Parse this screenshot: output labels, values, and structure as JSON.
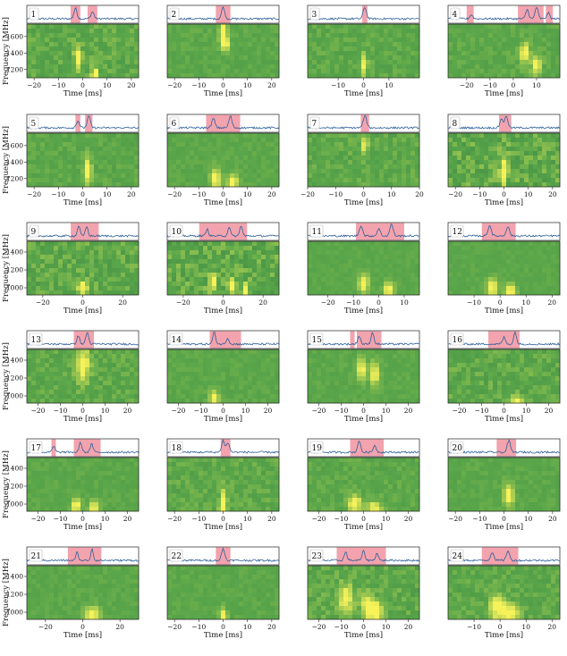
{
  "figure": {
    "ylabel": "Frequency [MHz]",
    "xlabel": "Time [ms]",
    "colors": {
      "profile_line": "#2e5f98",
      "burst_shade": "#f2a3ae",
      "spectrogram_base": "#5aa64a",
      "spectrogram_bright": "#f6f25a",
      "spectrogram_dark": "#2f7a42"
    }
  },
  "chart_data": [
    {
      "type": "heatmap",
      "panel_label": "1",
      "xticks": [
        -20,
        -10,
        0,
        10,
        20
      ],
      "xlim": [
        -23,
        23
      ],
      "yticks": [
        1200,
        1400,
        1600
      ],
      "ylim": [
        1100,
        1750
      ],
      "shaded_windows": [
        [
          -5,
          -1
        ],
        [
          2,
          6
        ]
      ],
      "profile_peaks": [
        {
          "t": -3,
          "amp": 0.9
        },
        {
          "t": 4,
          "amp": 0.6
        }
      ],
      "emission": [
        {
          "t": -2,
          "f": 1320,
          "dt": 1.5,
          "df": 150
        },
        {
          "t": 5,
          "f": 1150,
          "dt": 1.5,
          "df": 80
        }
      ],
      "noise": 0.5
    },
    {
      "type": "heatmap",
      "panel_label": "2",
      "xticks": [
        -20,
        -10,
        0,
        10,
        20
      ],
      "xlim": [
        -23,
        23
      ],
      "yticks": [],
      "ylim": [
        1100,
        1750
      ],
      "shaded_windows": [
        [
          -3,
          3
        ]
      ],
      "profile_peaks": [
        {
          "t": 0,
          "amp": 1.0
        }
      ],
      "emission": [
        {
          "t": 0,
          "f": 1650,
          "dt": 1.5,
          "df": 150
        },
        {
          "t": 1,
          "f": 1500,
          "dt": 1.5,
          "df": 80
        }
      ],
      "noise": 0.25
    },
    {
      "type": "heatmap",
      "panel_label": "3",
      "xticks": [
        -10,
        0,
        10
      ],
      "xlim": [
        -22,
        22
      ],
      "yticks": [],
      "ylim": [
        1100,
        1750
      ],
      "shaded_windows": [
        [
          -0.5,
          1.5
        ]
      ],
      "profile_peaks": [
        {
          "t": 0.5,
          "amp": 1.0
        }
      ],
      "emission": [
        {
          "t": 0.5,
          "f": 1250,
          "dt": 1.0,
          "df": 150
        }
      ],
      "noise": 0.35
    },
    {
      "type": "heatmap",
      "panel_label": "4",
      "xticks": [
        -20,
        -10,
        0,
        10
      ],
      "xlim": [
        -28,
        20
      ],
      "yticks": [],
      "ylim": [
        1100,
        1750
      ],
      "shaded_windows": [
        [
          -20,
          -17
        ],
        [
          2,
          13
        ],
        [
          14,
          17
        ]
      ],
      "profile_peaks": [
        {
          "t": -18,
          "amp": 0.35
        },
        {
          "t": 6,
          "amp": 0.8
        },
        {
          "t": 10,
          "amp": 1.0
        },
        {
          "t": 15,
          "amp": 0.5
        }
      ],
      "emission": [
        {
          "t": 5,
          "f": 1400,
          "dt": 2,
          "df": 120
        },
        {
          "t": 10,
          "f": 1250,
          "dt": 2,
          "df": 120
        }
      ],
      "noise": 0.3
    },
    {
      "type": "heatmap",
      "panel_label": "5",
      "xticks": [
        -20,
        -10,
        0,
        10,
        20
      ],
      "xlim": [
        -23,
        23
      ],
      "yticks": [
        1200,
        1400,
        1600
      ],
      "ylim": [
        1100,
        1750
      ],
      "shaded_windows": [
        [
          -3,
          -1
        ],
        [
          1,
          4
        ]
      ],
      "profile_peaks": [
        {
          "t": -2,
          "amp": 0.6
        },
        {
          "t": 2.5,
          "amp": 1.0
        }
      ],
      "emission": [
        {
          "t": 2,
          "f": 1300,
          "dt": 1.5,
          "df": 150
        }
      ],
      "noise": 0.3
    },
    {
      "type": "heatmap",
      "panel_label": "6",
      "xticks": [
        -20,
        -10,
        0,
        10,
        20
      ],
      "xlim": [
        -23,
        23
      ],
      "yticks": [],
      "ylim": [
        1100,
        1750
      ],
      "shaded_windows": [
        [
          -7,
          7
        ]
      ],
      "profile_peaks": [
        {
          "t": -4,
          "amp": 0.8
        },
        {
          "t": 3,
          "amp": 1.0
        }
      ],
      "emission": [
        {
          "t": -3,
          "f": 1200,
          "dt": 2,
          "df": 120
        },
        {
          "t": 4,
          "f": 1150,
          "dt": 2,
          "df": 100
        }
      ],
      "noise": 0.2
    },
    {
      "type": "heatmap",
      "panel_label": "7",
      "xticks": [
        -20,
        -10,
        0,
        10,
        20
      ],
      "xlim": [
        -20,
        20
      ],
      "yticks": [],
      "ylim": [
        1100,
        1750
      ],
      "shaded_windows": [
        [
          -1,
          2
        ]
      ],
      "profile_peaks": [
        {
          "t": 0.5,
          "amp": 1.0
        }
      ],
      "emission": [
        {
          "t": 0.5,
          "f": 1600,
          "dt": 1,
          "df": 100
        }
      ],
      "noise": 0.4
    },
    {
      "type": "heatmap",
      "panel_label": "8",
      "xticks": [
        -20,
        -10,
        0,
        10,
        20
      ],
      "xlim": [
        -23,
        23
      ],
      "yticks": [],
      "ylim": [
        1100,
        1750
      ],
      "shaded_windows": [
        [
          -2,
          3
        ]
      ],
      "profile_peaks": [
        {
          "t": -1,
          "amp": 0.8
        },
        {
          "t": 1,
          "amp": 1.0
        }
      ],
      "emission": [
        {
          "t": 0,
          "f": 1300,
          "dt": 1.5,
          "df": 200
        }
      ],
      "noise": 0.7
    },
    {
      "type": "heatmap",
      "panel_label": "9",
      "xticks": [
        -20,
        0,
        20
      ],
      "xlim": [
        -28,
        28
      ],
      "yticks": [
        1000,
        1200,
        1400
      ],
      "ylim": [
        920,
        1520
      ],
      "shaded_windows": [
        [
          -6,
          8
        ]
      ],
      "profile_peaks": [
        {
          "t": -2,
          "amp": 0.9
        },
        {
          "t": 2,
          "amp": 0.8
        }
      ],
      "emission": [
        {
          "t": 0,
          "f": 1000,
          "dt": 3,
          "df": 80
        }
      ],
      "noise": 0.6
    },
    {
      "type": "heatmap",
      "panel_label": "10",
      "xticks": [
        -20,
        0,
        20
      ],
      "xlim": [
        -28,
        28
      ],
      "yticks": [],
      "ylim": [
        920,
        1520
      ],
      "shaded_windows": [
        [
          -12,
          12
        ]
      ],
      "profile_peaks": [
        {
          "t": -8,
          "amp": 0.6
        },
        {
          "t": 3,
          "amp": 0.8
        },
        {
          "t": 9,
          "amp": 0.9
        }
      ],
      "emission": [
        {
          "t": -5,
          "f": 1050,
          "dt": 2,
          "df": 100
        },
        {
          "t": 5,
          "f": 1000,
          "dt": 2,
          "df": 100
        },
        {
          "t": 11,
          "f": 960,
          "dt": 2,
          "df": 80
        }
      ],
      "noise": 0.7
    },
    {
      "type": "heatmap",
      "panel_label": "11",
      "xticks": [
        -20,
        -10,
        0,
        10
      ],
      "xlim": [
        -28,
        16
      ],
      "yticks": [],
      "ylim": [
        920,
        1520
      ],
      "shaded_windows": [
        [
          -9,
          10
        ]
      ],
      "profile_peaks": [
        {
          "t": -7,
          "amp": 0.9
        },
        {
          "t": 0,
          "amp": 0.6
        },
        {
          "t": 5,
          "amp": 1.0
        }
      ],
      "emission": [
        {
          "t": -6,
          "f": 1050,
          "dt": 2,
          "df": 100
        },
        {
          "t": 4,
          "f": 980,
          "dt": 2,
          "df": 80
        }
      ],
      "noise": 0.15
    },
    {
      "type": "heatmap",
      "panel_label": "12",
      "xticks": [
        -10,
        0,
        10,
        20
      ],
      "xlim": [
        -20,
        23
      ],
      "yticks": [],
      "ylim": [
        920,
        1520
      ],
      "shaded_windows": [
        [
          -7,
          6
        ]
      ],
      "profile_peaks": [
        {
          "t": -4,
          "amp": 0.9
        },
        {
          "t": 3,
          "amp": 0.8
        }
      ],
      "emission": [
        {
          "t": -3,
          "f": 1000,
          "dt": 2,
          "df": 100
        },
        {
          "t": 4,
          "f": 960,
          "dt": 2,
          "df": 80
        }
      ],
      "noise": 0.15
    },
    {
      "type": "heatmap",
      "panel_label": "13",
      "xticks": [
        -20,
        -10,
        0,
        10,
        20
      ],
      "xlim": [
        -25,
        25
      ],
      "yticks": [
        1000,
        1200,
        1400
      ],
      "ylim": [
        920,
        1520
      ],
      "shaded_windows": [
        [
          -4,
          5
        ]
      ],
      "profile_peaks": [
        {
          "t": -2,
          "amp": 0.7
        },
        {
          "t": 2,
          "amp": 1.0
        }
      ],
      "emission": [
        {
          "t": 0,
          "f": 1350,
          "dt": 3,
          "df": 200
        }
      ],
      "noise": 0.4
    },
    {
      "type": "heatmap",
      "panel_label": "14",
      "xticks": [
        -20,
        -10,
        0,
        10,
        20
      ],
      "xlim": [
        -25,
        25
      ],
      "yticks": [],
      "ylim": [
        920,
        1520
      ],
      "shaded_windows": [
        [
          -6,
          8
        ]
      ],
      "profile_peaks": [
        {
          "t": -4,
          "amp": 1.0
        },
        {
          "t": 2,
          "amp": 0.5
        }
      ],
      "emission": [
        {
          "t": -4,
          "f": 980,
          "dt": 2,
          "df": 80
        }
      ],
      "noise": 0.2
    },
    {
      "type": "heatmap",
      "panel_label": "15",
      "xticks": [
        -20,
        -10,
        0,
        10,
        20
      ],
      "xlim": [
        -25,
        25
      ],
      "yticks": [],
      "ylim": [
        920,
        1520
      ],
      "shaded_windows": [
        [
          -6,
          -4
        ],
        [
          -3,
          8
        ]
      ],
      "profile_peaks": [
        {
          "t": -2,
          "amp": 0.7
        },
        {
          "t": 4,
          "amp": 1.0
        }
      ],
      "emission": [
        {
          "t": -1,
          "f": 1300,
          "dt": 2,
          "df": 120
        },
        {
          "t": 5,
          "f": 1250,
          "dt": 2,
          "df": 120
        }
      ],
      "noise": 0.2
    },
    {
      "type": "heatmap",
      "panel_label": "16",
      "xticks": [
        -20,
        -10,
        0,
        10,
        20
      ],
      "xlim": [
        -25,
        25
      ],
      "yticks": [],
      "ylim": [
        920,
        1520
      ],
      "shaded_windows": [
        [
          -7,
          7
        ]
      ],
      "profile_peaks": [
        {
          "t": 0,
          "amp": 0.6
        },
        {
          "t": 5,
          "amp": 1.0
        }
      ],
      "emission": [
        {
          "t": 6,
          "f": 950,
          "dt": 3,
          "df": 60
        }
      ],
      "noise": 0.5
    },
    {
      "type": "heatmap",
      "panel_label": "17",
      "xticks": [
        -20,
        -10,
        0,
        10,
        20
      ],
      "xlim": [
        -25,
        25
      ],
      "yticks": [
        1000,
        1200,
        1400
      ],
      "ylim": [
        920,
        1520
      ],
      "shaded_windows": [
        [
          -14,
          -12
        ],
        [
          -4,
          8
        ]
      ],
      "profile_peaks": [
        {
          "t": -13,
          "amp": 0.5
        },
        {
          "t": -1,
          "amp": 0.8
        },
        {
          "t": 4,
          "amp": 0.7
        }
      ],
      "emission": [
        {
          "t": -3,
          "f": 980,
          "dt": 2,
          "df": 80
        },
        {
          "t": 5,
          "f": 960,
          "dt": 2,
          "df": 80
        }
      ],
      "noise": 0.2
    },
    {
      "type": "heatmap",
      "panel_label": "18",
      "xticks": [
        -20,
        -10,
        0,
        10,
        20
      ],
      "xlim": [
        -23,
        23
      ],
      "yticks": [],
      "ylim": [
        920,
        1520
      ],
      "shaded_windows": [
        [
          -1,
          3
        ]
      ],
      "profile_peaks": [
        {
          "t": 0,
          "amp": 1.0
        },
        {
          "t": 2,
          "amp": 0.8
        }
      ],
      "emission": [
        {
          "t": 0,
          "f": 1000,
          "dt": 1.5,
          "df": 150
        }
      ],
      "noise": 0.4
    },
    {
      "type": "heatmap",
      "panel_label": "19",
      "xticks": [
        -20,
        -10,
        0,
        10,
        20
      ],
      "xlim": [
        -25,
        25
      ],
      "yticks": [],
      "ylim": [
        920,
        1520
      ],
      "shaded_windows": [
        [
          -6,
          9
        ]
      ],
      "profile_peaks": [
        {
          "t": -2,
          "amp": 1.0
        },
        {
          "t": 5,
          "amp": 0.6
        }
      ],
      "emission": [
        {
          "t": -4,
          "f": 1000,
          "dt": 3,
          "df": 100
        },
        {
          "t": 5,
          "f": 960,
          "dt": 3,
          "df": 60
        }
      ],
      "noise": 0.3
    },
    {
      "type": "heatmap",
      "panel_label": "20",
      "xticks": [
        -20,
        -10,
        0,
        10,
        20
      ],
      "xlim": [
        -23,
        23
      ],
      "yticks": [],
      "ylim": [
        920,
        1520
      ],
      "shaded_windows": [
        [
          -3,
          5
        ]
      ],
      "profile_peaks": [
        {
          "t": 2,
          "amp": 1.0
        }
      ],
      "emission": [
        {
          "t": 2,
          "f": 1100,
          "dt": 2,
          "df": 120
        }
      ],
      "noise": 0.2
    },
    {
      "type": "heatmap",
      "panel_label": "21",
      "xticks": [
        -20,
        0,
        20
      ],
      "xlim": [
        -30,
        30
      ],
      "yticks": [
        1000,
        1200,
        1400
      ],
      "ylim": [
        920,
        1520
      ],
      "shaded_windows": [
        [
          -8,
          10
        ]
      ],
      "profile_peaks": [
        {
          "t": -3,
          "amp": 0.7
        },
        {
          "t": 5,
          "amp": 1.0
        }
      ],
      "emission": [
        {
          "t": 5,
          "f": 980,
          "dt": 4,
          "df": 80
        }
      ],
      "noise": 0.2
    },
    {
      "type": "heatmap",
      "panel_label": "22",
      "xticks": [
        -20,
        -10,
        0,
        10,
        20
      ],
      "xlim": [
        -23,
        23
      ],
      "yticks": [],
      "ylim": [
        920,
        1520
      ],
      "shaded_windows": [
        [
          -3,
          3
        ]
      ],
      "profile_peaks": [
        {
          "t": 0,
          "amp": 1.0
        }
      ],
      "emission": [
        {
          "t": 0,
          "f": 960,
          "dt": 1.5,
          "df": 80
        }
      ],
      "noise": 0.2
    },
    {
      "type": "heatmap",
      "panel_label": "23",
      "xticks": [
        -20,
        -10,
        0,
        10,
        20
      ],
      "xlim": [
        -25,
        25
      ],
      "yticks": [],
      "ylim": [
        920,
        1520
      ],
      "shaded_windows": [
        [
          -12,
          10
        ]
      ],
      "profile_peaks": [
        {
          "t": -8,
          "amp": 0.7
        },
        {
          "t": 0,
          "amp": 0.8
        },
        {
          "t": 6,
          "amp": 0.6
        }
      ],
      "emission": [
        {
          "t": -8,
          "f": 1150,
          "dt": 3,
          "df": 150
        },
        {
          "t": 2,
          "f": 1050,
          "dt": 3,
          "df": 150
        },
        {
          "t": 6,
          "f": 1000,
          "dt": 3,
          "df": 100
        }
      ],
      "noise": 0.5
    },
    {
      "type": "heatmap",
      "panel_label": "24",
      "xticks": [
        -10,
        0,
        10,
        20
      ],
      "xlim": [
        -20,
        23
      ],
      "yticks": [],
      "ylim": [
        920,
        1520
      ],
      "shaded_windows": [
        [
          -7,
          7
        ]
      ],
      "profile_peaks": [
        {
          "t": -3,
          "amp": 0.7
        },
        {
          "t": 3,
          "amp": 0.8
        }
      ],
      "emission": [
        {
          "t": -1,
          "f": 1050,
          "dt": 3,
          "df": 150
        },
        {
          "t": 4,
          "f": 980,
          "dt": 3,
          "df": 100
        }
      ],
      "noise": 0.4
    }
  ]
}
